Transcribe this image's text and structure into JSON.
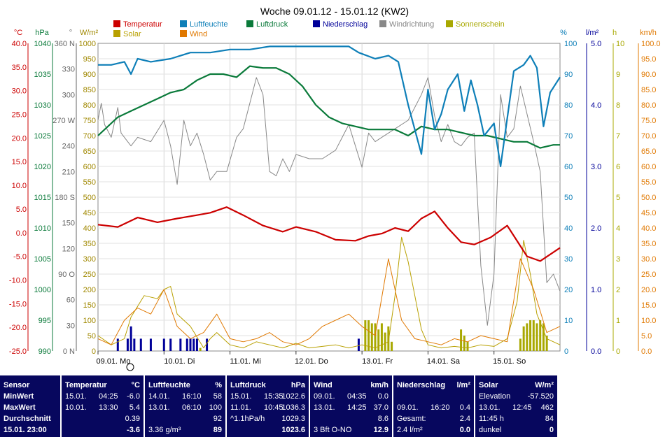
{
  "chart_data": {
    "type": "line",
    "title": "Woche 09.01.12 - 15.01.12 (KW2)",
    "x_labels": [
      "09.01. Mo",
      "10.01. Di",
      "11.01. Mi",
      "12.01. Do",
      "13.01. Fr",
      "14.01. Sa",
      "15.01. So"
    ],
    "x_range": [
      0,
      7
    ],
    "legend": [
      {
        "name": "Temperatur",
        "color": "#cc0000"
      },
      {
        "name": "Luftfeuchte",
        "color": "#0e7fb8"
      },
      {
        "name": "Luftdruck",
        "color": "#0a7a3a"
      },
      {
        "name": "Niederschlag",
        "color": "#000099"
      },
      {
        "name": "Windrichtung",
        "color": "#888888"
      },
      {
        "name": "Sonnenschein",
        "color": "#a8a800"
      },
      {
        "name": "Solar",
        "color": "#b8a000"
      },
      {
        "name": "Wind",
        "color": "#e07800"
      }
    ],
    "axes": {
      "temperature": {
        "unit": "°C",
        "range": [
          -25,
          40
        ],
        "ticks": [
          "40.0",
          "35.0",
          "30.0",
          "25.0",
          "20.0",
          "15.0",
          "10.0",
          "5.0",
          "0.0",
          "-5.0",
          "-10.0",
          "-15.0",
          "-20.0",
          "-25.0"
        ],
        "color": "#cc0000"
      },
      "pressure": {
        "unit": "hPa",
        "range": [
          990,
          1040
        ],
        "ticks": [
          "1040",
          "1035",
          "1030",
          "1025",
          "1020",
          "1015",
          "1010",
          "1005",
          "1000",
          "995",
          "990"
        ],
        "color": "#0a7a3a"
      },
      "wind_direction": {
        "unit": "°",
        "range": [
          0,
          360
        ],
        "ticks": [
          "360 N",
          "330",
          "300",
          "270 W",
          "240",
          "210",
          "180 S",
          "150",
          "120",
          "90  O",
          "60",
          "30",
          "0   N"
        ],
        "color": "#666666"
      },
      "solar": {
        "unit": "W/m²",
        "range": [
          0,
          1000
        ],
        "ticks": [
          "1000",
          "950",
          "900",
          "850",
          "800",
          "750",
          "700",
          "650",
          "600",
          "550",
          "500",
          "450",
          "400",
          "350",
          "300",
          "250",
          "200",
          "150",
          "100",
          "50",
          "0"
        ],
        "color": "#a08800"
      },
      "humidity": {
        "unit": "%",
        "range": [
          0,
          100
        ],
        "ticks": [
          "100",
          "90",
          "80",
          "70",
          "60",
          "50",
          "40",
          "30",
          "20",
          "10",
          "0"
        ],
        "color": "#0e7fb8"
      },
      "precipitation": {
        "unit": "l/m²",
        "range": [
          0,
          5
        ],
        "ticks": [
          "5.0",
          "4.0",
          "3.0",
          "2.0",
          "1.0",
          "0.0"
        ],
        "color": "#000099"
      },
      "sunshine": {
        "unit": "h",
        "range": [
          0,
          10
        ],
        "ticks": [
          "10",
          "9",
          "8",
          "7",
          "6",
          "5",
          "4",
          "3",
          "2",
          "1",
          "0"
        ],
        "color": "#a8a800"
      },
      "wind": {
        "unit": "km/h",
        "range": [
          0,
          100
        ],
        "ticks": [
          "100.0",
          "95.0",
          "90.0",
          "85.0",
          "80.0",
          "75.0",
          "70.0",
          "65.0",
          "60.0",
          "55.0",
          "50.0",
          "45.0",
          "40.0",
          "35.0",
          "30.0",
          "25.0",
          "20.0",
          "15.0",
          "10.0",
          "5.0",
          "0.0"
        ],
        "color": "#e07800"
      }
    },
    "series": [
      {
        "name": "Temperatur",
        "unit": "°C",
        "x": [
          0,
          0.3,
          0.6,
          0.9,
          1.2,
          1.5,
          1.7,
          1.95,
          2.2,
          2.5,
          2.8,
          3.0,
          3.3,
          3.6,
          3.9,
          4.1,
          4.3,
          4.5,
          4.7,
          4.9,
          5.1,
          5.3,
          5.5,
          5.7,
          5.95,
          6.2,
          6.5,
          6.7,
          7.0
        ],
        "values": [
          1.7,
          1.2,
          3.2,
          2.2,
          3.0,
          3.7,
          4.2,
          5.4,
          3.7,
          1.5,
          0.2,
          1.2,
          0.2,
          -1.5,
          -1.7,
          -0.7,
          -0.2,
          1.0,
          0.3,
          3.0,
          4.5,
          1.0,
          -2.0,
          -2.5,
          -1.0,
          1.5,
          -5.0,
          -6.0,
          -3.2
        ]
      },
      {
        "name": "Luftfeuchte",
        "unit": "%",
        "x": [
          0,
          0.2,
          0.4,
          0.5,
          0.6,
          0.8,
          1.1,
          1.4,
          1.7,
          2.0,
          2.3,
          2.6,
          2.9,
          3.2,
          3.5,
          3.8,
          3.95,
          4.2,
          4.4,
          4.55,
          4.7,
          4.9,
          5.0,
          5.1,
          5.2,
          5.3,
          5.45,
          5.55,
          5.65,
          5.75,
          5.85,
          6.0,
          6.1,
          6.3,
          6.45,
          6.55,
          6.65,
          6.75,
          6.85,
          7.0
        ],
        "values": [
          93,
          93,
          94,
          90,
          95,
          94,
          95,
          97,
          97,
          98,
          98,
          99,
          99,
          99,
          99,
          99,
          97,
          95,
          96,
          94,
          80,
          64,
          85,
          72,
          77,
          85,
          90,
          78,
          88,
          80,
          70,
          74,
          60,
          91,
          93,
          96,
          92,
          73,
          84,
          89
        ]
      },
      {
        "name": "Luftdruck",
        "unit": "hPa",
        "x": [
          0,
          0.3,
          0.5,
          0.7,
          0.9,
          1.1,
          1.3,
          1.5,
          1.7,
          1.9,
          2.1,
          2.3,
          2.5,
          2.7,
          2.9,
          3.1,
          3.3,
          3.5,
          3.7,
          3.9,
          4.1,
          4.3,
          4.5,
          4.7,
          4.9,
          5.1,
          5.3,
          5.5,
          5.7,
          5.9,
          6.1,
          6.3,
          6.5,
          6.7,
          6.9,
          7.0
        ],
        "values": [
          1025,
          1028,
          1029,
          1030,
          1031,
          1032,
          1032.5,
          1034,
          1035,
          1035,
          1034.5,
          1036.3,
          1036,
          1036,
          1035,
          1033,
          1030,
          1028,
          1027,
          1026.5,
          1026,
          1026,
          1026,
          1025,
          1026.5,
          1026,
          1026,
          1025.5,
          1025,
          1025,
          1024.5,
          1024,
          1024,
          1023,
          1023.5,
          1023.5
        ]
      },
      {
        "name": "Windrichtung",
        "unit": "°",
        "x": [
          0,
          0.05,
          0.1,
          0.2,
          0.3,
          0.35,
          0.4,
          0.5,
          0.6,
          0.8,
          1.0,
          1.1,
          1.2,
          1.3,
          1.4,
          1.5,
          1.6,
          1.7,
          1.8,
          1.95,
          2.1,
          2.2,
          2.3,
          2.4,
          2.5,
          2.6,
          2.7,
          2.8,
          2.9,
          3.0,
          3.2,
          3.4,
          3.6,
          3.7,
          3.8,
          3.9,
          4.0,
          4.1,
          4.2,
          4.3,
          4.5,
          4.7,
          4.9,
          5.0,
          5.1,
          5.2,
          5.3,
          5.4,
          5.5,
          5.6,
          5.7,
          5.8,
          5.9,
          6.0,
          6.1,
          6.2,
          6.3,
          6.4,
          6.6,
          6.7,
          6.8,
          6.9,
          7.0
        ],
        "values": [
          270,
          290,
          265,
          250,
          285,
          255,
          250,
          240,
          250,
          245,
          270,
          240,
          195,
          270,
          240,
          255,
          230,
          200,
          210,
          210,
          250,
          260,
          290,
          320,
          300,
          210,
          205,
          225,
          210,
          230,
          225,
          225,
          235,
          250,
          265,
          240,
          215,
          255,
          245,
          250,
          260,
          270,
          300,
          320,
          275,
          245,
          265,
          245,
          240,
          250,
          255,
          100,
          30,
          90,
          300,
          250,
          260,
          310,
          245,
          210,
          80,
          90,
          70
        ]
      },
      {
        "name": "Solar",
        "unit": "W/m²",
        "x": [
          0,
          0.2,
          0.4,
          0.5,
          0.7,
          0.9,
          1.0,
          1.1,
          1.2,
          1.4,
          1.6,
          1.7,
          1.8,
          2.0,
          2.2,
          2.4,
          2.6,
          2.8,
          3.0,
          3.2,
          3.4,
          3.6,
          3.8,
          4.0,
          4.2,
          4.4,
          4.5,
          4.6,
          4.7,
          4.8,
          4.9,
          5.0,
          5.2,
          5.4,
          5.6,
          5.8,
          6.0,
          6.2,
          6.35,
          6.45,
          6.55,
          6.65,
          6.8,
          7.0
        ],
        "values": [
          50,
          20,
          40,
          110,
          180,
          170,
          200,
          210,
          120,
          80,
          10,
          40,
          60,
          20,
          10,
          30,
          20,
          10,
          25,
          10,
          15,
          20,
          10,
          20,
          10,
          30,
          180,
          370,
          290,
          180,
          70,
          20,
          10,
          15,
          10,
          20,
          15,
          40,
          160,
          360,
          250,
          120,
          40,
          20
        ]
      },
      {
        "name": "Wind",
        "unit": "km/h",
        "x": [
          0,
          0.2,
          0.4,
          0.6,
          0.8,
          1.0,
          1.2,
          1.4,
          1.6,
          1.8,
          2.0,
          2.2,
          2.4,
          2.6,
          2.8,
          3.0,
          3.2,
          3.4,
          3.6,
          3.8,
          4.0,
          4.2,
          4.4,
          4.6,
          4.8,
          5.0,
          5.2,
          5.4,
          5.6,
          5.8,
          6.0,
          6.2,
          6.4,
          6.6,
          6.8,
          7.0
        ],
        "values": [
          4,
          2,
          10,
          14,
          12,
          20,
          8,
          4,
          6,
          12,
          4,
          3,
          4,
          6,
          3,
          2,
          4,
          8,
          10,
          12,
          8,
          5,
          30,
          10,
          4,
          3,
          2,
          4,
          3,
          5,
          4,
          3,
          30,
          20,
          6,
          8
        ]
      },
      {
        "name": "Niederschlag",
        "unit": "l/m²",
        "type": "bar",
        "x": [
          0.3,
          0.45,
          0.5,
          0.55,
          0.65,
          0.8,
          1.0,
          1.1,
          1.25,
          1.35,
          1.4,
          1.45,
          1.5,
          1.65,
          3.95
        ],
        "values": [
          0.2,
          0.2,
          0.4,
          0.2,
          0.2,
          0.2,
          0.2,
          0.2,
          0.2,
          0.2,
          0.2,
          0.2,
          0.2,
          0.2,
          0.2
        ]
      },
      {
        "name": "Sonnenschein",
        "unit": "h",
        "type": "bar",
        "x": [
          4.05,
          4.1,
          4.15,
          4.2,
          4.25,
          4.3,
          4.35,
          4.4,
          4.45,
          5.5,
          5.55,
          5.6,
          6.4,
          6.45,
          6.5,
          6.55,
          6.6,
          6.65,
          6.7,
          6.75,
          6.8,
          1.55
        ],
        "values": [
          1.0,
          1.0,
          0.9,
          0.9,
          0.7,
          0.9,
          0.6,
          0.8,
          0.3,
          0.7,
          0.5,
          0.3,
          0.4,
          0.8,
          0.9,
          1.0,
          1.0,
          0.9,
          1.0,
          0.9,
          0.5,
          0.1
        ]
      }
    ]
  },
  "stats": {
    "sensor": {
      "header": "Sensor",
      "rows": [
        "MinWert",
        "MaxWert",
        "Durchschnitt",
        "15.01. 23:00"
      ]
    },
    "temperatur": {
      "header": "Temperatur",
      "unit": "°C",
      "rows": [
        [
          "15.01.",
          "04:25",
          "-6.0"
        ],
        [
          "10.01.",
          "13:30",
          "5.4"
        ],
        [
          "",
          "",
          "0.39"
        ],
        [
          "",
          "",
          "-3.6"
        ]
      ]
    },
    "luftfeuchte": {
      "header": "Luftfeuchte",
      "unit": "%",
      "rows": [
        [
          "14.01.",
          "16:10",
          "58"
        ],
        [
          "13.01.",
          "06:10",
          "100"
        ],
        [
          "",
          "",
          "92"
        ],
        [
          "3.36 g/m³",
          "",
          "89"
        ]
      ]
    },
    "luftdruck": {
      "header": "Luftdruck",
      "unit": "hPa",
      "rows": [
        [
          "15.01.",
          "15:35",
          "1022.6"
        ],
        [
          "11.01.",
          "10:45",
          "1036.3"
        ],
        [
          "^1.1hPa/h",
          "",
          "1029.3"
        ],
        [
          "",
          "",
          "1023.6"
        ]
      ]
    },
    "wind": {
      "header": "Wind",
      "unit": "km/h",
      "rows": [
        [
          "09.01.",
          "04:35",
          "0.0"
        ],
        [
          "13.01.",
          "14:25",
          "37.0"
        ],
        [
          "",
          "",
          "8.6"
        ],
        [
          "3 Bft O-NO",
          "",
          "12.9"
        ]
      ]
    },
    "niederschlag": {
      "header": "Niederschlag",
      "unit": "l/m²",
      "rows": [
        [
          "",
          "",
          ""
        ],
        [
          "09.01.",
          "16:20",
          "0.4"
        ],
        [
          "Gesamt:",
          "",
          "2.4"
        ],
        [
          "2.4 l/m²",
          "",
          "0.0"
        ]
      ]
    },
    "solar": {
      "header": "Solar",
      "unit": "W/m²",
      "rows": [
        [
          "",
          "Elevation",
          "-57.520"
        ],
        [
          "13.01.",
          "12:45",
          "462"
        ],
        [
          "11:45 h",
          "",
          "84"
        ],
        [
          "dunkel",
          "",
          "0"
        ]
      ]
    }
  }
}
